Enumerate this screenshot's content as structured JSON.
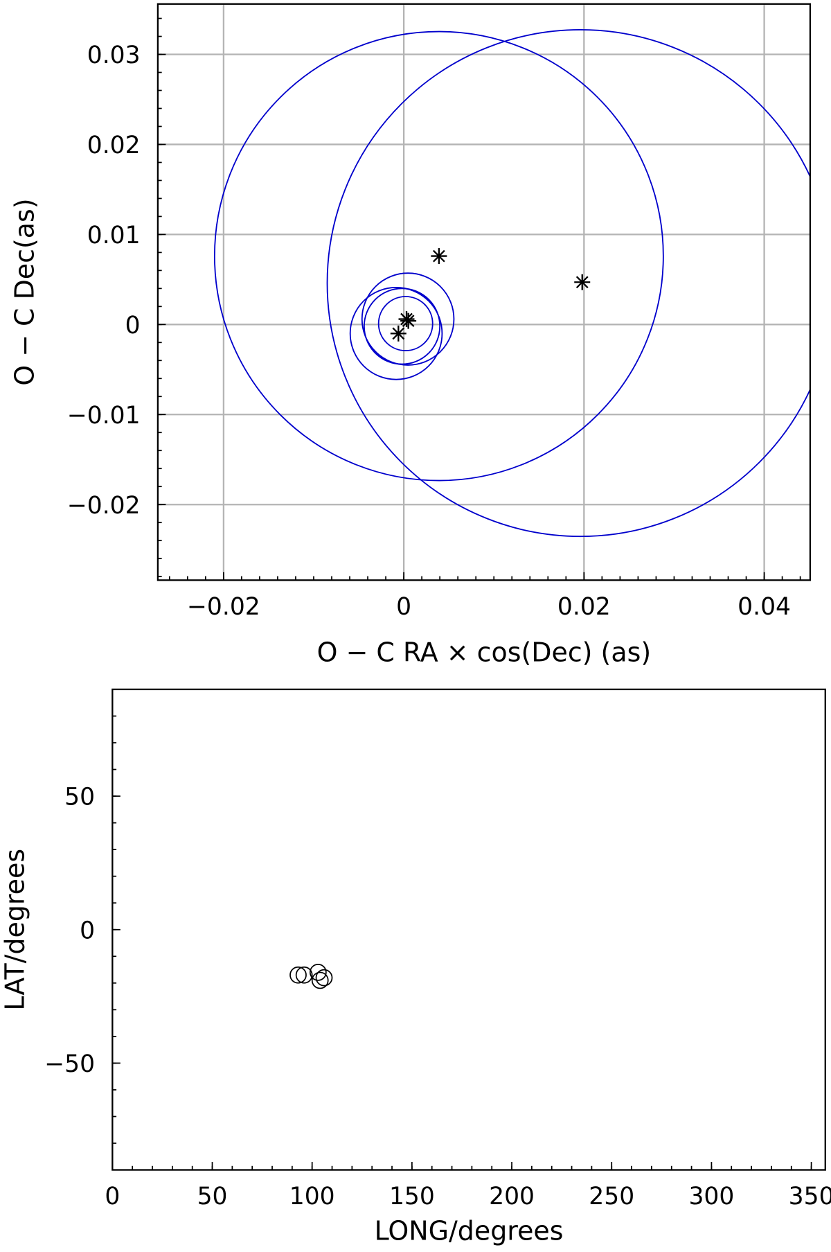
{
  "chart_data": [
    {
      "type": "scatter",
      "xlabel": "O − C RA ×  cos(Dec) (as)",
      "ylabel": "O − C Dec(as)",
      "xlim": [
        -0.0273,
        0.0451
      ],
      "ylim": [
        -0.0284,
        0.0356
      ],
      "grid": true,
      "xticks": [
        -0.02,
        0,
        0.02,
        0.04
      ],
      "xtick_labels": [
        "−0.02",
        "0",
        "0.02",
        "0.04"
      ],
      "yticks": [
        -0.02,
        -0.01,
        0,
        0.01,
        0.02,
        0.03
      ],
      "ytick_labels": [
        "−0.02",
        "−0.01",
        "0",
        "0.01",
        "0.02",
        "0.03"
      ],
      "points": [
        {
          "x": 0.0003,
          "y": 0.0006
        },
        {
          "x": 0.0005,
          "y": 0.0004
        },
        {
          "x": -0.0006,
          "y": -0.001
        },
        {
          "x": 0.0039,
          "y": 0.0076
        },
        {
          "x": 0.0198,
          "y": 0.0047
        }
      ],
      "error_circles": [
        {
          "x": 0.0039,
          "y": 0.0076,
          "r": 0.0249
        },
        {
          "x": 0.0196,
          "y": 0.0046,
          "r": 0.0281
        },
        {
          "x": 0.00046,
          "y": 0.0006,
          "r": 0.0051
        },
        {
          "x": -0.00085,
          "y": -0.001,
          "r": 0.0051
        },
        {
          "x": -0.0002,
          "y": -0.0002,
          "r": 0.0042
        },
        {
          "x": 0.0002,
          "y": 0.0001,
          "r": 0.003
        }
      ],
      "colors": {
        "circle": "#0000cc",
        "point": "#000000",
        "grid": "#b4b4b4"
      }
    },
    {
      "type": "scatter",
      "xlabel": "LONG/degrees",
      "ylabel": "LAT/degrees",
      "xlim": [
        0,
        357
      ],
      "ylim": [
        -90,
        90
      ],
      "grid": false,
      "xticks": [
        0,
        50,
        100,
        150,
        200,
        250,
        300,
        350
      ],
      "xtick_labels": [
        "0",
        "50",
        "100",
        "150",
        "200",
        "250",
        "300",
        "350"
      ],
      "yticks": [
        -50,
        0,
        50
      ],
      "ytick_labels": [
        "−50",
        "0",
        "50"
      ],
      "points": [
        {
          "x": 93,
          "y": -17
        },
        {
          "x": 96,
          "y": -17
        },
        {
          "x": 103,
          "y": -16
        },
        {
          "x": 104,
          "y": -19
        },
        {
          "x": 106,
          "y": -18
        }
      ]
    }
  ]
}
